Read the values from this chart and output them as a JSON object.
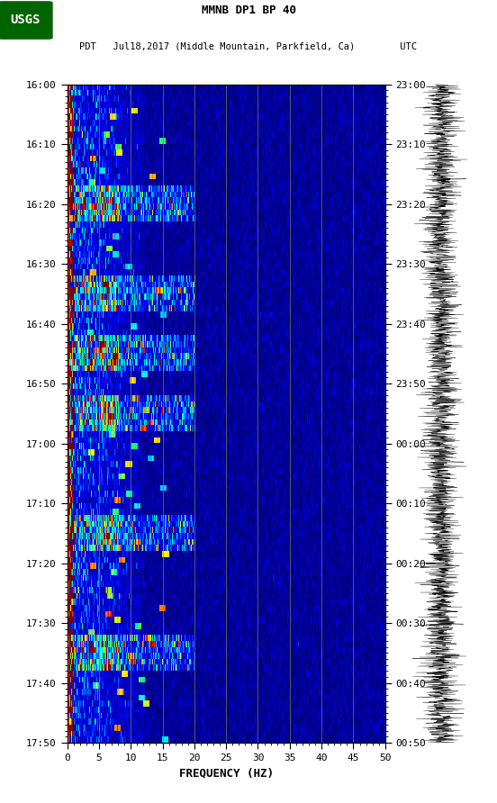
{
  "title_line1": "MMNB DP1 BP 40",
  "title_line2": "PDT   Jul18,2017 (Middle Mountain, Parkfield, Ca)        UTC",
  "xlabel": "FREQUENCY (HZ)",
  "freq_min": 0,
  "freq_max": 50,
  "freq_ticks": [
    0,
    5,
    10,
    15,
    20,
    25,
    30,
    35,
    40,
    45,
    50
  ],
  "time_labels_left": [
    "16:00",
    "16:10",
    "16:20",
    "16:30",
    "16:40",
    "16:50",
    "17:00",
    "17:10",
    "17:20",
    "17:30",
    "17:40",
    "17:50"
  ],
  "time_labels_right": [
    "23:00",
    "23:10",
    "23:20",
    "23:30",
    "23:40",
    "23:50",
    "00:00",
    "00:10",
    "00:20",
    "00:30",
    "00:40",
    "00:50"
  ],
  "background_color": "#ffffff",
  "spectrogram_bg": "#000080",
  "n_time": 110,
  "n_freq": 500,
  "seed": 42,
  "grid_color": "#808040",
  "wave_color": "#000000"
}
